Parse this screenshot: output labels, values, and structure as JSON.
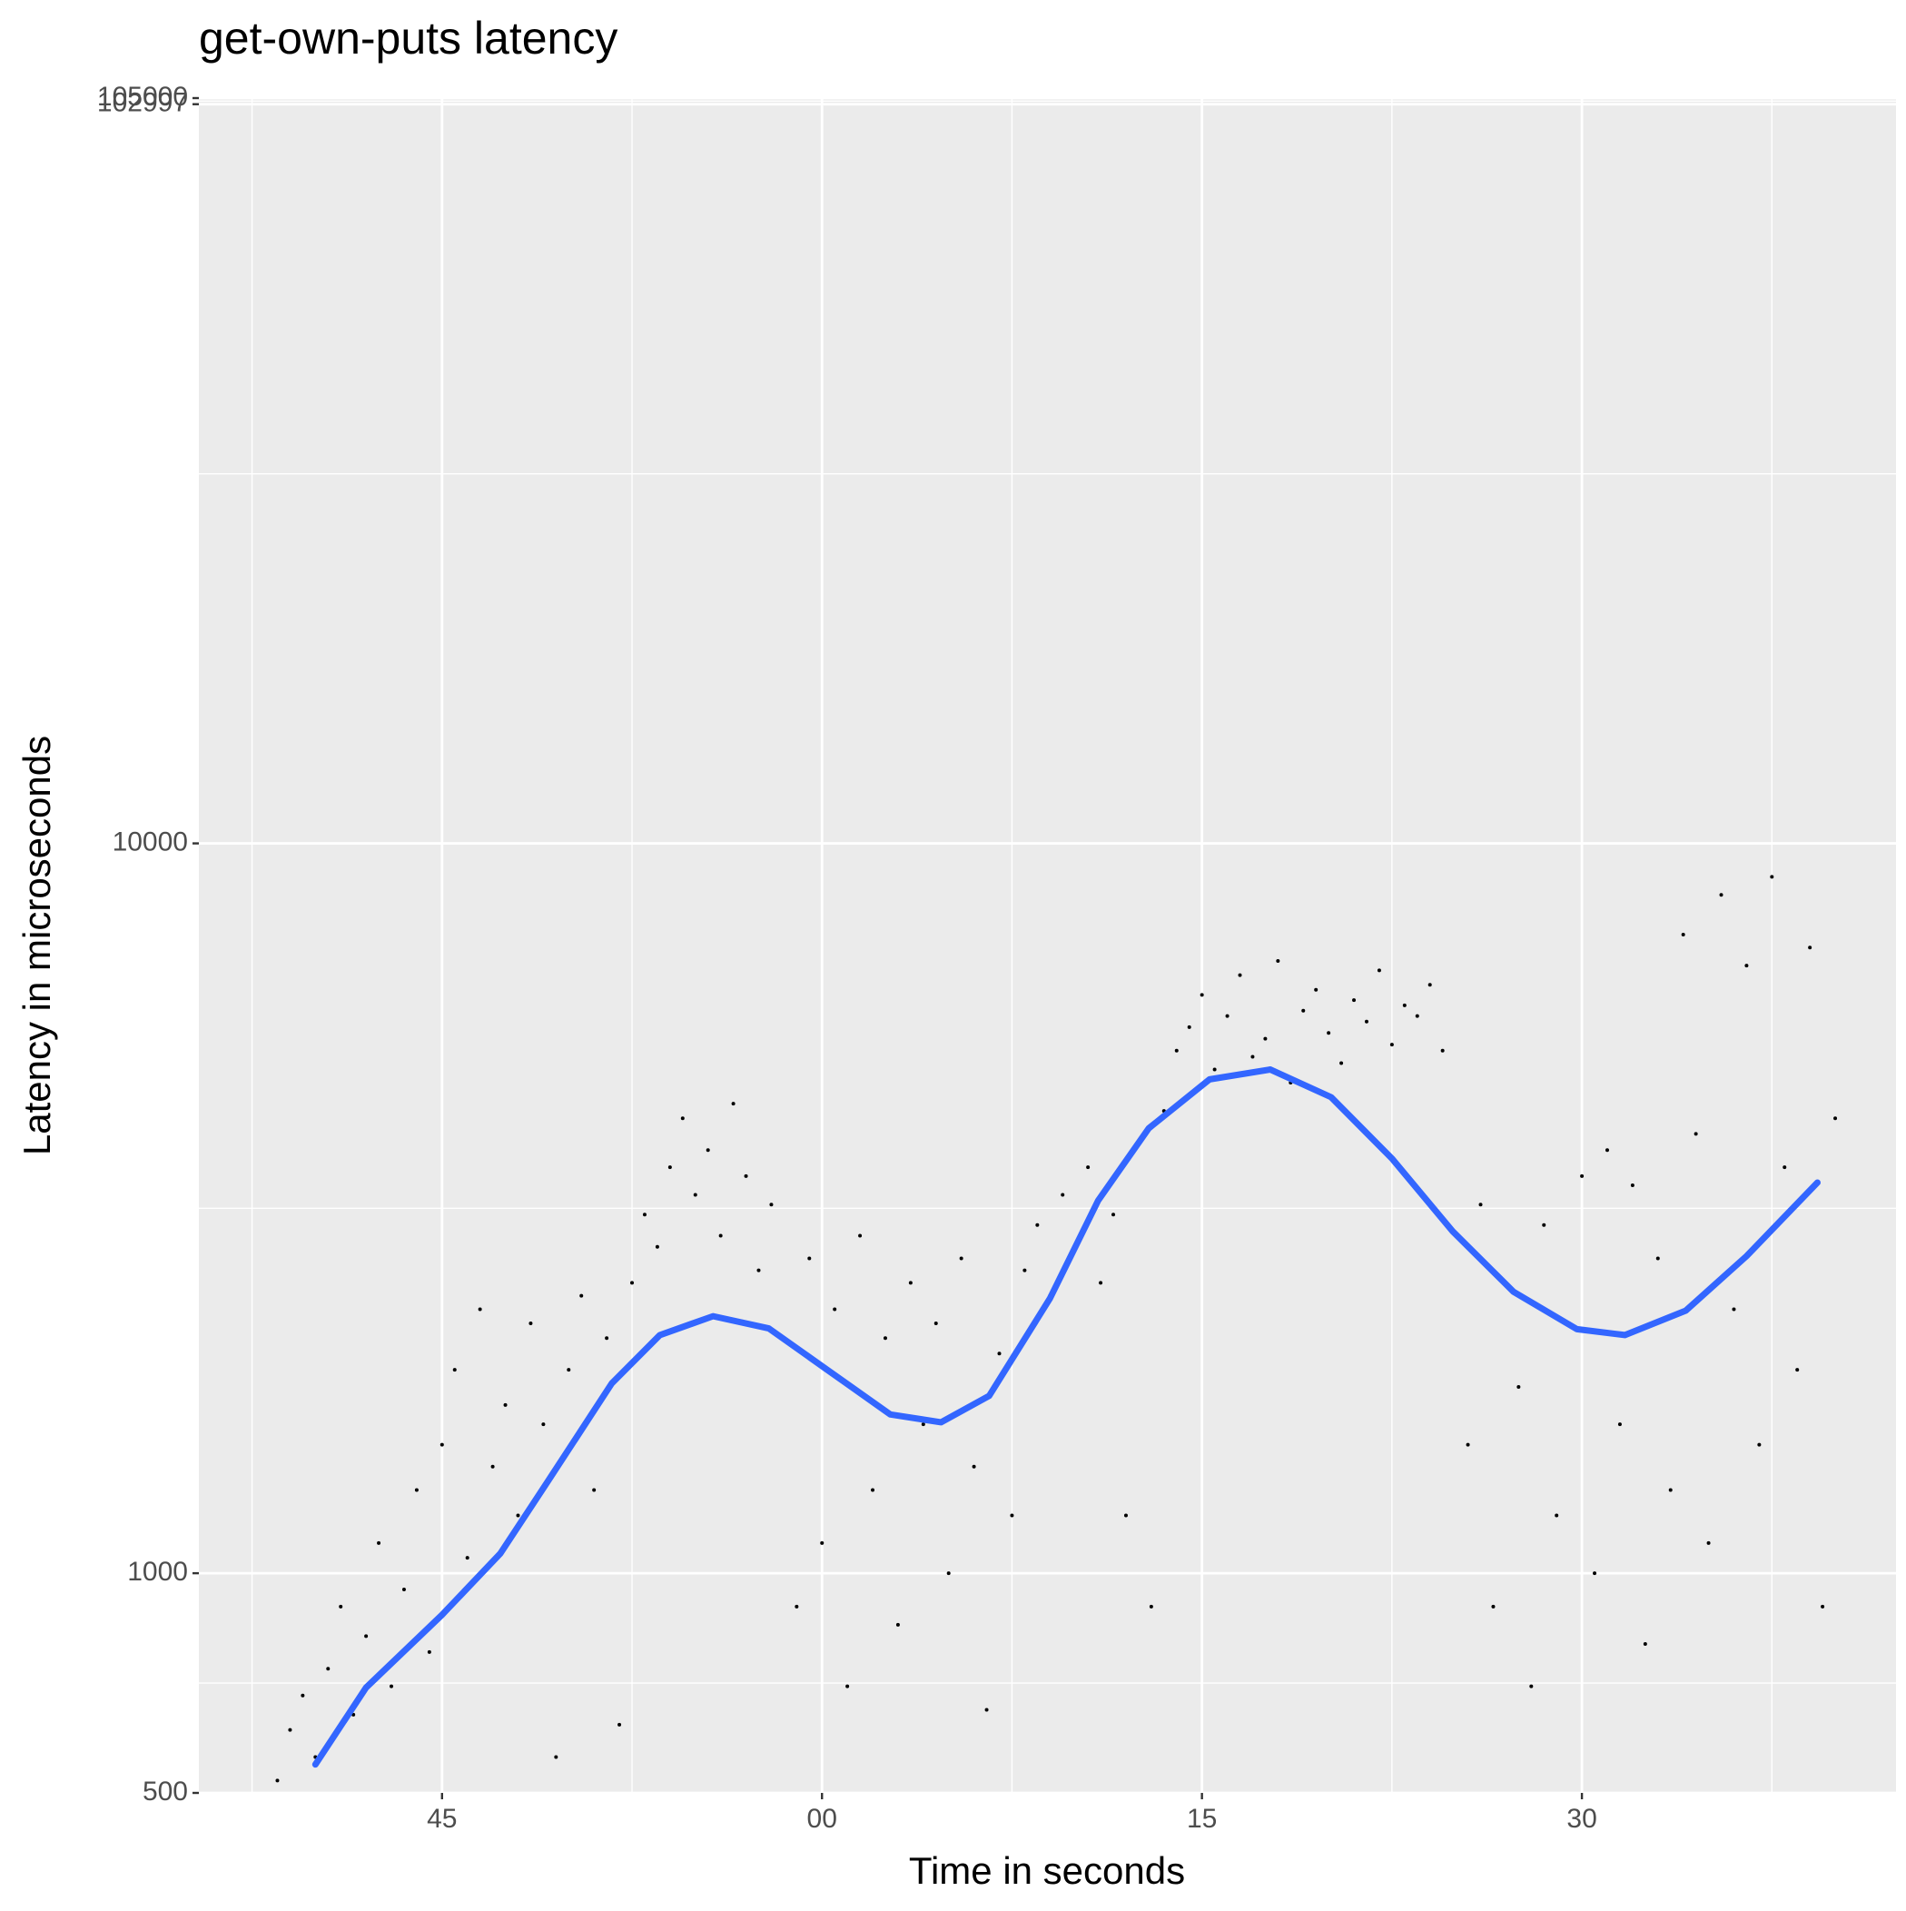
{
  "chart_data": {
    "type": "scatter",
    "title": "get-own-puts latency",
    "x_label": "Time in seconds",
    "y_label": "Latency in microseconds",
    "xlim": [
      -24.6,
      42.4
    ],
    "ylim": [
      500,
      105000
    ],
    "log_y": true,
    "grid": true,
    "minor_grid": true,
    "xticks": [
      {
        "value": -15,
        "label": "45"
      },
      {
        "value": 0,
        "label": "00"
      },
      15,
      30
    ],
    "yticks": [
      500,
      1000,
      10000,
      102997,
      105000
    ],
    "series": [
      {
        "type": "scatter",
        "color": "#000000",
        "x": [
          -21.5,
          -21,
          -20.5,
          -20,
          -19.5,
          -19,
          -18.5,
          -18,
          -17.5,
          -17,
          -16.5,
          -16,
          -15.5,
          -15,
          -14.5,
          -14,
          -13.5,
          -13,
          -12.5,
          -12,
          -11.5,
          -11,
          -10.5,
          -10,
          -9.5,
          -9,
          -8.5,
          -8,
          -7.5,
          -7,
          -6.5,
          -6,
          -5.5,
          -5,
          -4.5,
          -4,
          -3.5,
          -3,
          -2.5,
          -2,
          -1,
          -0.5,
          0,
          0.5,
          1,
          1.5,
          2,
          2.5,
          3,
          3.5,
          4,
          4.5,
          5,
          5.5,
          6,
          6.5,
          7,
          7.5,
          8,
          8.5,
          9,
          9.5,
          10,
          10.5,
          11,
          11.5,
          12,
          12.5,
          13,
          13.5,
          14,
          14.5,
          15,
          15.5,
          16,
          16.5,
          17,
          17.5,
          18,
          18.5,
          19,
          19.5,
          20,
          20.5,
          21,
          21.5,
          22,
          22.5,
          23,
          23.5,
          24,
          24.5,
          25.5,
          26,
          26.5,
          27,
          27.5,
          28,
          28.5,
          29,
          29.5,
          30,
          30.5,
          31,
          31.5,
          32,
          32.5,
          33,
          33.5,
          34,
          34.5,
          35,
          35.5,
          36,
          36.5,
          37,
          37.5,
          38,
          38.5,
          39,
          39.5,
          40
        ],
        "values": [
          520,
          610,
          680,
          560,
          740,
          900,
          640,
          820,
          1100,
          700,
          950,
          1300,
          780,
          1500,
          1900,
          1050,
          2300,
          1400,
          1700,
          1200,
          2200,
          1600,
          560,
          1900,
          2400,
          1300,
          2100,
          620,
          2500,
          3100,
          2800,
          3600,
          4200,
          3300,
          3800,
          2900,
          4400,
          3500,
          2600,
          3200,
          900,
          2700,
          1100,
          2300,
          700,
          2900,
          1300,
          2100,
          850,
          2500,
          1600,
          2200,
          1000,
          2700,
          1400,
          650,
          2000,
          1200,
          2600,
          3000,
          2400,
          3300,
          2800,
          3600,
          2500,
          3100,
          1200,
          3900,
          900,
          4300,
          5200,
          5600,
          6200,
          4900,
          5800,
          6600,
          5100,
          5400,
          6900,
          4700,
          5900,
          6300,
          5500,
          5000,
          6100,
          5700,
          6700,
          5300,
          6000,
          5800,
          6400,
          5200,
          1500,
          3200,
          900,
          2500,
          1800,
          700,
          3000,
          1200,
          2200,
          3500,
          1000,
          3800,
          1600,
          3400,
          800,
          2700,
          1300,
          7500,
          4000,
          1100,
          8500,
          2300,
          6800,
          1500,
          9000,
          3600,
          1900,
          7200,
          900,
          4200
        ]
      },
      {
        "type": "line",
        "color": "#3366ff",
        "x": [
          -20.0,
          -18.0,
          -15.0,
          -12.7,
          -10.8,
          -8.3,
          -6.4,
          -4.3,
          -2.1,
          0.3,
          2.7,
          4.7,
          6.6,
          9.0,
          10.9,
          12.9,
          15.3,
          17.7,
          20.1,
          22.5,
          24.9,
          27.3,
          29.8,
          31.7,
          34.1,
          36.5,
          39.3
        ],
        "values": [
          547,
          697,
          877,
          1064,
          1340,
          1820,
          2120,
          2250,
          2165,
          1890,
          1650,
          1610,
          1750,
          2380,
          3240,
          4070,
          4750,
          4900,
          4490,
          3700,
          2940,
          2430,
          2160,
          2120,
          2290,
          2720,
          3430
        ]
      }
    ]
  }
}
